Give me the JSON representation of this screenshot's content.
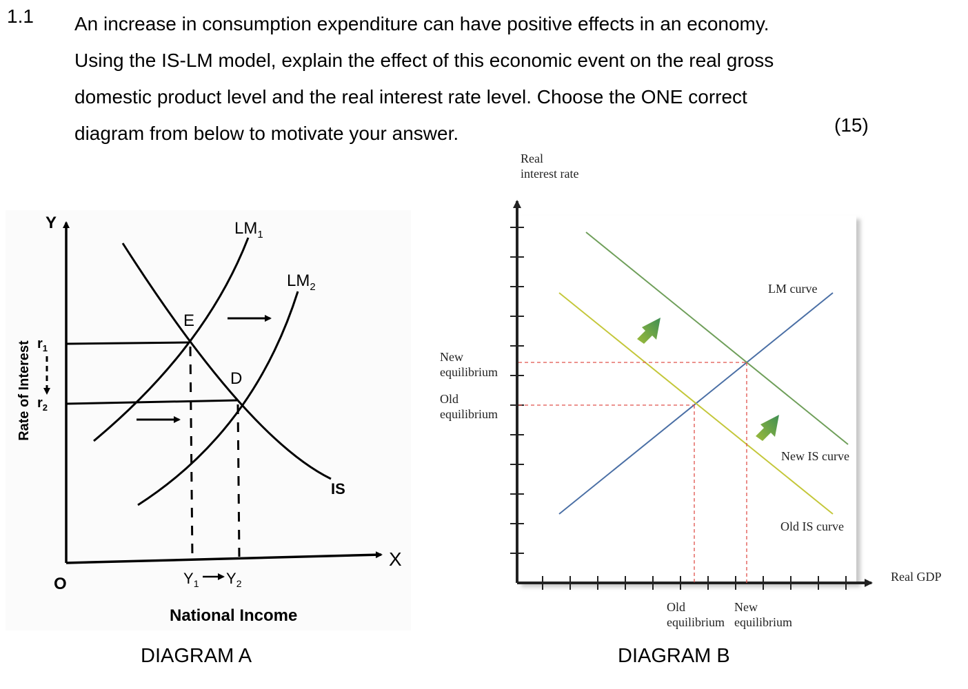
{
  "question": {
    "number": "1.1",
    "lines": [
      "An increase in consumption expenditure can have positive effects in an economy.",
      "Using the IS-LM model, explain the effect of this economic event on the real gross",
      "domestic product level and the real interest rate level. Choose the ONE correct",
      "diagram from below to motivate your answer."
    ],
    "marks": "(15)"
  },
  "diagram_a": {
    "caption": "DIAGRAM A",
    "y_axis_letter": "Y",
    "x_axis_letter": "X",
    "origin": "O",
    "y_axis_title": "Rate of Interest",
    "x_axis_title": "National Income",
    "lm1_label": "LM",
    "lm1_sub": "1",
    "lm2_label": "LM",
    "lm2_sub": "2",
    "is_label": "IS",
    "point_e": "E",
    "point_d": "D",
    "r1_label": "r",
    "r1_sub": "1",
    "r2_label": "r",
    "r2_sub": "2",
    "y1_label": "Y",
    "y1_sub": "1",
    "y2_label": "Y",
    "y2_sub": "2"
  },
  "diagram_b": {
    "caption": "DIAGRAM B",
    "y_axis_title_line1": "Real",
    "y_axis_title_line2": "interest rate",
    "x_axis_title": "Real GDP",
    "new_eq_y_line1": "New",
    "new_eq_y_line2": "equilibrium",
    "old_eq_y_line1": "Old",
    "old_eq_y_line2": "equilibrium",
    "old_eq_x_line1": "Old",
    "old_eq_x_line2": "equilibrium",
    "new_eq_x_line1": "New",
    "new_eq_x_line2": "equilibrium",
    "lm_label": "LM curve",
    "new_is_label": "New IS curve",
    "old_is_label": "Old IS curve",
    "colors": {
      "lm": "#4a6fa5",
      "new_is": "#6f9f5a",
      "old_is": "#c4c73a",
      "dashed": "#e0504a",
      "arrow_start": "#9dbb3a",
      "arrow_end": "#3f8f54"
    }
  }
}
